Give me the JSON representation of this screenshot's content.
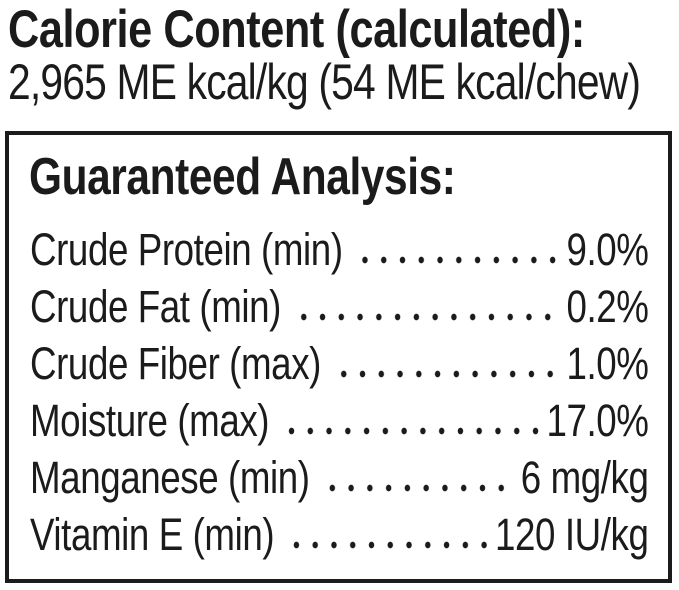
{
  "page": {
    "background_color": "#ffffff",
    "text_color": "#1b1b1b",
    "border_color": "#1b1b1b"
  },
  "calorie": {
    "title": "Calorie Content (calculated):",
    "value": "2,965 ME kcal/kg (54 ME kcal/chew)"
  },
  "analysis": {
    "title": "Guaranteed Analysis:",
    "rows": [
      {
        "label": "Crude Protein (min)",
        "value": "9.0%"
      },
      {
        "label": "Crude Fat (min)",
        "value": "0.2%"
      },
      {
        "label": "Crude Fiber (max)",
        "value": "1.0%"
      },
      {
        "label": "Moisture (max)",
        "value": "17.0%"
      },
      {
        "label": "Manganese (min)",
        "value": "6 mg/kg"
      },
      {
        "label": "Vitamin E (min)",
        "value": "120 IU/kg"
      }
    ]
  }
}
